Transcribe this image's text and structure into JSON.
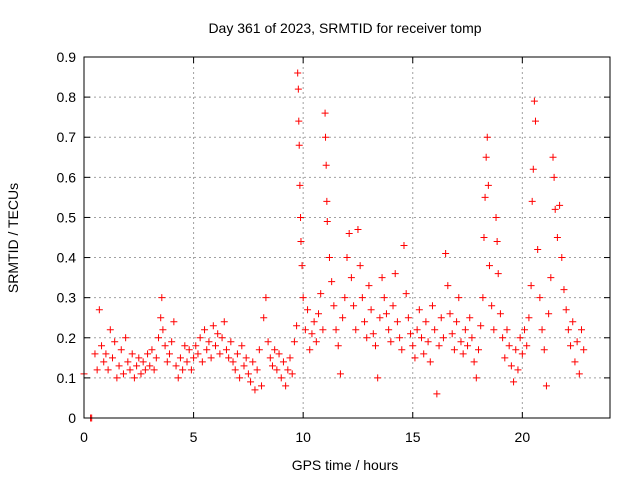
{
  "chart_data": {
    "type": "scatter",
    "title": "Day 361 of 2023, SRMTID for receiver tomp",
    "xlabel": "GPS time / hours",
    "ylabel": "SRMTID / TECUs",
    "xlim": [
      0,
      24
    ],
    "ylim": [
      0,
      0.9
    ],
    "xticks": [
      0,
      5,
      10,
      15,
      20
    ],
    "xtick_labels": [
      "0",
      "5",
      "10",
      "15",
      "20"
    ],
    "yticks": [
      0,
      0.1,
      0.2,
      0.3,
      0.4,
      0.5,
      0.6,
      0.7,
      0.8,
      0.9
    ],
    "ytick_labels": [
      "0",
      "0.1",
      "0.2",
      "0.3",
      "0.4",
      "0.5",
      "0.6",
      "0.7",
      "0.8",
      "0.9"
    ],
    "grid": true,
    "marker": "+",
    "color": "#ff0000",
    "series": [
      {
        "name": "SRMTID",
        "points": [
          [
            0.0,
            0.11
          ],
          [
            0.3,
            0.0
          ],
          [
            0.35,
            0.0
          ],
          [
            0.5,
            0.16
          ],
          [
            0.6,
            0.12
          ],
          [
            0.7,
            0.27
          ],
          [
            0.8,
            0.18
          ],
          [
            0.9,
            0.14
          ],
          [
            1.0,
            0.16
          ],
          [
            1.1,
            0.12
          ],
          [
            1.2,
            0.22
          ],
          [
            1.3,
            0.15
          ],
          [
            1.4,
            0.19
          ],
          [
            1.5,
            0.1
          ],
          [
            1.6,
            0.13
          ],
          [
            1.7,
            0.17
          ],
          [
            1.8,
            0.11
          ],
          [
            1.9,
            0.2
          ],
          [
            2.0,
            0.14
          ],
          [
            2.1,
            0.12
          ],
          [
            2.2,
            0.16
          ],
          [
            2.3,
            0.1
          ],
          [
            2.4,
            0.13
          ],
          [
            2.5,
            0.15
          ],
          [
            2.6,
            0.11
          ],
          [
            2.7,
            0.14
          ],
          [
            2.8,
            0.12
          ],
          [
            2.9,
            0.16
          ],
          [
            3.0,
            0.13
          ],
          [
            3.1,
            0.17
          ],
          [
            3.2,
            0.12
          ],
          [
            3.3,
            0.15
          ],
          [
            3.4,
            0.2
          ],
          [
            3.5,
            0.25
          ],
          [
            3.55,
            0.3
          ],
          [
            3.6,
            0.22
          ],
          [
            3.7,
            0.18
          ],
          [
            3.8,
            0.14
          ],
          [
            3.9,
            0.16
          ],
          [
            4.0,
            0.19
          ],
          [
            4.1,
            0.24
          ],
          [
            4.2,
            0.13
          ],
          [
            4.3,
            0.1
          ],
          [
            4.4,
            0.15
          ],
          [
            4.5,
            0.12
          ],
          [
            4.6,
            0.18
          ],
          [
            4.7,
            0.14
          ],
          [
            4.8,
            0.17
          ],
          [
            4.9,
            0.12
          ],
          [
            5.0,
            0.15
          ],
          [
            5.1,
            0.18
          ],
          [
            5.2,
            0.16
          ],
          [
            5.3,
            0.2
          ],
          [
            5.4,
            0.14
          ],
          [
            5.5,
            0.22
          ],
          [
            5.6,
            0.17
          ],
          [
            5.7,
            0.19
          ],
          [
            5.8,
            0.15
          ],
          [
            5.9,
            0.23
          ],
          [
            6.0,
            0.18
          ],
          [
            6.1,
            0.21
          ],
          [
            6.2,
            0.16
          ],
          [
            6.3,
            0.2
          ],
          [
            6.4,
            0.24
          ],
          [
            6.5,
            0.17
          ],
          [
            6.6,
            0.15
          ],
          [
            6.7,
            0.19
          ],
          [
            6.8,
            0.14
          ],
          [
            6.9,
            0.12
          ],
          [
            7.0,
            0.16
          ],
          [
            7.1,
            0.1
          ],
          [
            7.2,
            0.18
          ],
          [
            7.3,
            0.13
          ],
          [
            7.4,
            0.15
          ],
          [
            7.5,
            0.11
          ],
          [
            7.6,
            0.09
          ],
          [
            7.7,
            0.14
          ],
          [
            7.8,
            0.07
          ],
          [
            7.9,
            0.12
          ],
          [
            8.0,
            0.17
          ],
          [
            8.1,
            0.08
          ],
          [
            8.2,
            0.25
          ],
          [
            8.3,
            0.3
          ],
          [
            8.4,
            0.19
          ],
          [
            8.5,
            0.15
          ],
          [
            8.6,
            0.13
          ],
          [
            8.7,
            0.17
          ],
          [
            8.8,
            0.12
          ],
          [
            8.9,
            0.16
          ],
          [
            9.0,
            0.1
          ],
          [
            9.1,
            0.14
          ],
          [
            9.2,
            0.08
          ],
          [
            9.3,
            0.12
          ],
          [
            9.4,
            0.15
          ],
          [
            9.5,
            0.11
          ],
          [
            9.6,
            0.19
          ],
          [
            9.7,
            0.23
          ],
          [
            9.75,
            0.86
          ],
          [
            9.78,
            0.82
          ],
          [
            9.8,
            0.74
          ],
          [
            9.82,
            0.68
          ],
          [
            9.85,
            0.58
          ],
          [
            9.88,
            0.5
          ],
          [
            9.9,
            0.44
          ],
          [
            9.95,
            0.38
          ],
          [
            10.0,
            0.3
          ],
          [
            10.1,
            0.22
          ],
          [
            10.2,
            0.27
          ],
          [
            10.3,
            0.17
          ],
          [
            10.4,
            0.21
          ],
          [
            10.5,
            0.24
          ],
          [
            10.6,
            0.19
          ],
          [
            10.7,
            0.26
          ],
          [
            10.8,
            0.31
          ],
          [
            10.9,
            0.22
          ],
          [
            11.0,
            0.76
          ],
          [
            11.02,
            0.7
          ],
          [
            11.05,
            0.63
          ],
          [
            11.08,
            0.54
          ],
          [
            11.1,
            0.49
          ],
          [
            11.2,
            0.4
          ],
          [
            11.3,
            0.34
          ],
          [
            11.4,
            0.28
          ],
          [
            11.5,
            0.22
          ],
          [
            11.6,
            0.18
          ],
          [
            11.7,
            0.11
          ],
          [
            11.8,
            0.25
          ],
          [
            11.9,
            0.3
          ],
          [
            12.0,
            0.4
          ],
          [
            12.1,
            0.46
          ],
          [
            12.2,
            0.35
          ],
          [
            12.3,
            0.28
          ],
          [
            12.4,
            0.22
          ],
          [
            12.5,
            0.47
          ],
          [
            12.6,
            0.38
          ],
          [
            12.7,
            0.3
          ],
          [
            12.8,
            0.24
          ],
          [
            12.9,
            0.2
          ],
          [
            13.0,
            0.33
          ],
          [
            13.1,
            0.27
          ],
          [
            13.2,
            0.21
          ],
          [
            13.3,
            0.18
          ],
          [
            13.4,
            0.1
          ],
          [
            13.5,
            0.25
          ],
          [
            13.6,
            0.35
          ],
          [
            13.7,
            0.3
          ],
          [
            13.8,
            0.26
          ],
          [
            13.9,
            0.22
          ],
          [
            14.0,
            0.19
          ],
          [
            14.1,
            0.28
          ],
          [
            14.2,
            0.36
          ],
          [
            14.3,
            0.24
          ],
          [
            14.4,
            0.2
          ],
          [
            14.5,
            0.17
          ],
          [
            14.6,
            0.43
          ],
          [
            14.7,
            0.31
          ],
          [
            14.8,
            0.25
          ],
          [
            14.9,
            0.21
          ],
          [
            15.0,
            0.18
          ],
          [
            15.1,
            0.15
          ],
          [
            15.2,
            0.22
          ],
          [
            15.3,
            0.27
          ],
          [
            15.4,
            0.2
          ],
          [
            15.5,
            0.16
          ],
          [
            15.6,
            0.24
          ],
          [
            15.7,
            0.19
          ],
          [
            15.8,
            0.14
          ],
          [
            15.9,
            0.28
          ],
          [
            16.0,
            0.22
          ],
          [
            16.1,
            0.06
          ],
          [
            16.2,
            0.18
          ],
          [
            16.3,
            0.25
          ],
          [
            16.4,
            0.2
          ],
          [
            16.5,
            0.41
          ],
          [
            16.6,
            0.33
          ],
          [
            16.7,
            0.26
          ],
          [
            16.8,
            0.21
          ],
          [
            16.9,
            0.17
          ],
          [
            17.0,
            0.24
          ],
          [
            17.1,
            0.3
          ],
          [
            17.2,
            0.19
          ],
          [
            17.3,
            0.16
          ],
          [
            17.4,
            0.22
          ],
          [
            17.5,
            0.18
          ],
          [
            17.6,
            0.25
          ],
          [
            17.7,
            0.2
          ],
          [
            17.8,
            0.14
          ],
          [
            17.9,
            0.1
          ],
          [
            18.0,
            0.17
          ],
          [
            18.1,
            0.23
          ],
          [
            18.2,
            0.3
          ],
          [
            18.25,
            0.45
          ],
          [
            18.3,
            0.55
          ],
          [
            18.35,
            0.65
          ],
          [
            18.4,
            0.7
          ],
          [
            18.45,
            0.58
          ],
          [
            18.5,
            0.38
          ],
          [
            18.6,
            0.28
          ],
          [
            18.7,
            0.22
          ],
          [
            18.8,
            0.5
          ],
          [
            18.85,
            0.44
          ],
          [
            18.9,
            0.36
          ],
          [
            19.0,
            0.26
          ],
          [
            19.1,
            0.2
          ],
          [
            19.2,
            0.15
          ],
          [
            19.3,
            0.22
          ],
          [
            19.4,
            0.18
          ],
          [
            19.5,
            0.13
          ],
          [
            19.6,
            0.09
          ],
          [
            19.7,
            0.17
          ],
          [
            19.8,
            0.12
          ],
          [
            19.9,
            0.2
          ],
          [
            20.0,
            0.16
          ],
          [
            20.1,
            0.22
          ],
          [
            20.2,
            0.18
          ],
          [
            20.3,
            0.25
          ],
          [
            20.4,
            0.33
          ],
          [
            20.45,
            0.54
          ],
          [
            20.5,
            0.62
          ],
          [
            20.55,
            0.79
          ],
          [
            20.6,
            0.74
          ],
          [
            20.7,
            0.42
          ],
          [
            20.8,
            0.3
          ],
          [
            20.9,
            0.22
          ],
          [
            21.0,
            0.17
          ],
          [
            21.1,
            0.08
          ],
          [
            21.2,
            0.26
          ],
          [
            21.3,
            0.35
          ],
          [
            21.4,
            0.65
          ],
          [
            21.45,
            0.6
          ],
          [
            21.5,
            0.52
          ],
          [
            21.6,
            0.45
          ],
          [
            21.7,
            0.53
          ],
          [
            21.8,
            0.4
          ],
          [
            21.9,
            0.32
          ],
          [
            22.0,
            0.27
          ],
          [
            22.1,
            0.22
          ],
          [
            22.2,
            0.18
          ],
          [
            22.3,
            0.24
          ],
          [
            22.4,
            0.14
          ],
          [
            22.5,
            0.19
          ],
          [
            22.6,
            0.11
          ],
          [
            22.7,
            0.22
          ],
          [
            22.8,
            0.17
          ]
        ]
      }
    ]
  }
}
